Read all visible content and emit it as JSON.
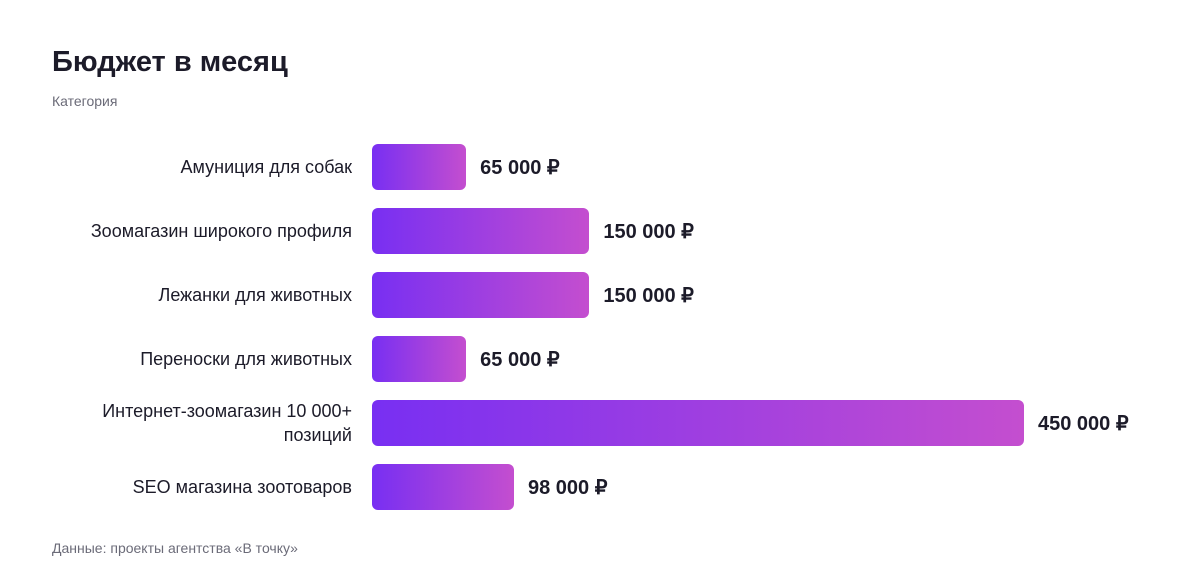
{
  "chart_data": {
    "type": "hbar",
    "title": "Бюджет в месяц",
    "y_label": "Категория",
    "categories": [
      "Амуниция для собак",
      "Зоомагазин широкого профиля",
      "Лежанки для животных",
      "Переноски для животных",
      "Интернет-зоомагазин 10 000+ позиций",
      "SEO магазина зоотоваров"
    ],
    "values": [
      65000,
      150000,
      150000,
      65000,
      450000,
      98000
    ],
    "value_labels": [
      "65 000 ₽",
      "150 000 ₽",
      "150 000 ₽",
      "65 000 ₽",
      "450 000 ₽",
      "98 000 ₽"
    ],
    "gradient": [
      "#782ff2",
      "#c44ecf"
    ],
    "source": "Данные: проекты агентства «В точку»"
  }
}
